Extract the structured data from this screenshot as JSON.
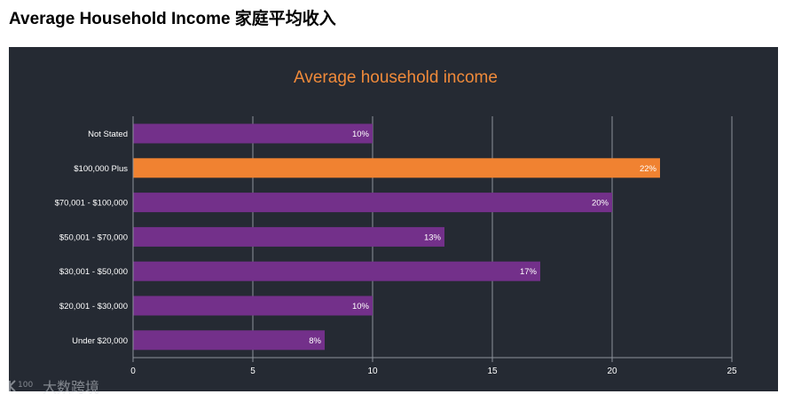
{
  "page": {
    "heading": "Average Household Income 家庭平均收入"
  },
  "watermark": {
    "logo_text": "100",
    "text": "大数跨境"
  },
  "colors": {
    "panel_bg": "#252a33",
    "title": "#f08a3a",
    "bar_default": "#73308a",
    "bar_highlight": "#f08231",
    "grid": "#8d929b",
    "label": "#ffffff"
  },
  "chart_data": {
    "type": "bar",
    "orientation": "horizontal",
    "title": "Average household income",
    "categories": [
      "Not Stated",
      "$100,000 Plus",
      "$70,001 - $100,000",
      "$50,001 - $70,000",
      "$30,001 - $50,000",
      "$20,001 - $30,000",
      "Under $20,000"
    ],
    "values": [
      10,
      22,
      20,
      13,
      17,
      10,
      8
    ],
    "value_labels": [
      "10%",
      "22%",
      "20%",
      "13%",
      "17%",
      "10%",
      "8%"
    ],
    "highlight_index": 1,
    "xlim": [
      0,
      25
    ],
    "xticks": [
      0,
      5,
      10,
      15,
      20,
      25
    ],
    "xlabel": "",
    "ylabel": "",
    "grid": true
  }
}
